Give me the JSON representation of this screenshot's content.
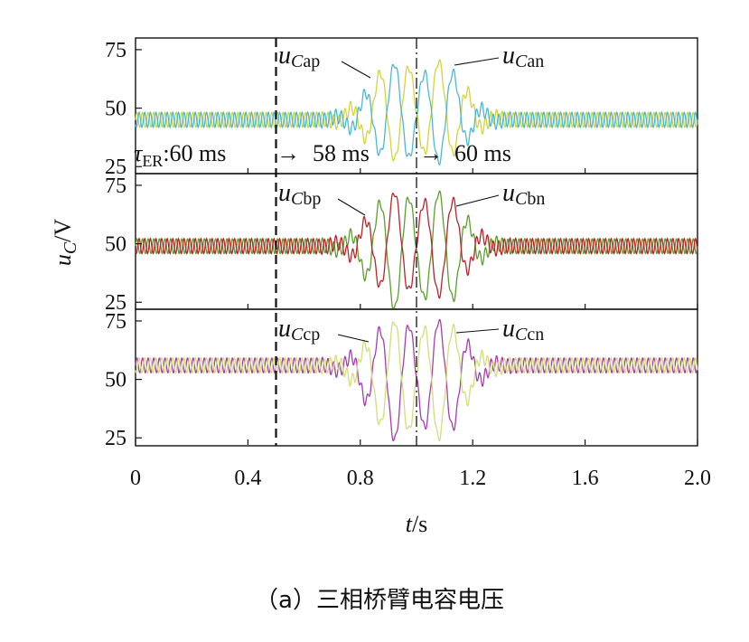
{
  "chart_data": {
    "type": "line",
    "caption": "（a）三相桥臂电容电压",
    "xlabel_var": "t",
    "xlabel_unit": "/s",
    "ylabel_var": "u",
    "ylabel_sub": "C",
    "ylabel_unit": "/V",
    "xlim": [
      0,
      2.0
    ],
    "x_ticks": [
      "0",
      "0.4",
      "0.8",
      "1.2",
      "1.6",
      "2.0"
    ],
    "x_tick_values": [
      0,
      0.4,
      0.8,
      1.2,
      1.6,
      2.0
    ],
    "ylim": [
      22,
      80
    ],
    "y_ticks": [
      "75",
      "50",
      "25"
    ],
    "y_tick_values": [
      75,
      50,
      25
    ],
    "event_lines_t": [
      0.5,
      1.0
    ],
    "annotation": {
      "tau_symbol": "τ",
      "tau_sub": "ER",
      "text1": ":60 ms",
      "text2": "58 ms",
      "text3": "60 ms",
      "arrow": "→"
    },
    "panels": [
      {
        "id": "a",
        "steady_value": 45,
        "series": [
          {
            "name_base": "u",
            "name_sub": "Cap",
            "color": "#d4d43a",
            "phase": 0,
            "peak_max": 70,
            "peak_min": 28
          },
          {
            "name_base": "u",
            "name_sub": "Can",
            "color": "#4ab8d8",
            "phase": 3.14,
            "peak_max": 69,
            "peak_min": 27
          }
        ]
      },
      {
        "id": "b",
        "steady_value": 49,
        "series": [
          {
            "name_base": "u",
            "name_sub": "Cbp",
            "color": "#5aa02c",
            "phase": 0,
            "peak_max": 72,
            "peak_min": 22
          },
          {
            "name_base": "u",
            "name_sub": "Cbn",
            "color": "#c0202a",
            "phase": 3.14,
            "peak_max": 72,
            "peak_min": 28
          }
        ]
      },
      {
        "id": "c",
        "steady_value": 56,
        "series": [
          {
            "name_base": "u",
            "name_sub": "Ccp",
            "color": "#a83cb0",
            "phase": 0,
            "peak_max": 75,
            "peak_min": 24
          },
          {
            "name_base": "u",
            "name_sub": "Ccn",
            "color": "#cfe07a",
            "phase": 3.14,
            "peak_max": 75,
            "peak_min": 25
          }
        ]
      }
    ]
  }
}
